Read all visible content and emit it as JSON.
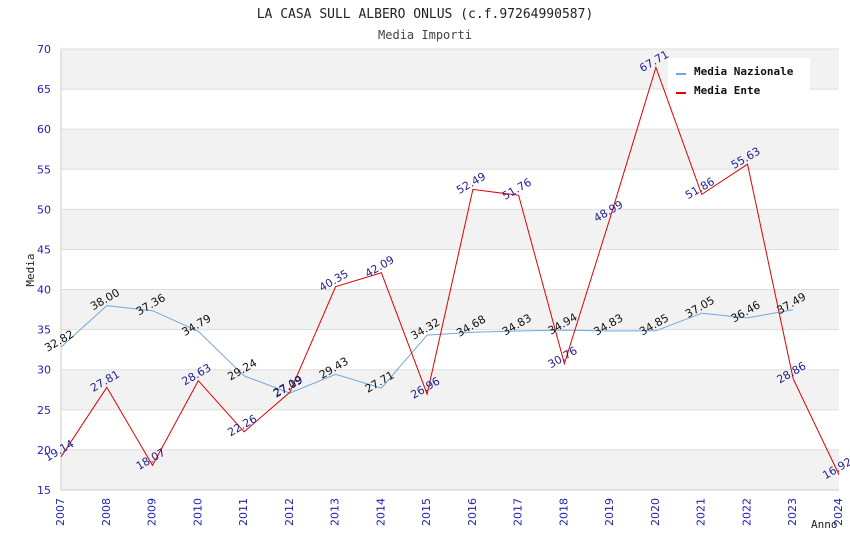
{
  "chart_data": {
    "type": "line",
    "title": "LA CASA SULL ALBERO ONLUS (c.f.97264990587)",
    "subtitle": "Media Importi",
    "xlabel": "Anno",
    "ylabel": "Media",
    "ylim": [
      15,
      70
    ],
    "yticks": [
      "15",
      "20",
      "25",
      "30",
      "35",
      "40",
      "45",
      "50",
      "55",
      "60",
      "65",
      "70"
    ],
    "categories": [
      "2007",
      "2008",
      "2009",
      "2010",
      "2011",
      "2012",
      "2013",
      "2014",
      "2015",
      "2016",
      "2017",
      "2018",
      "2019",
      "2020",
      "2021",
      "2022",
      "2023",
      "2024"
    ],
    "legend_position": "top-right",
    "series": [
      {
        "name": "Media Nazionale",
        "color": "#6fa8dc",
        "values": [
          32.82,
          38.0,
          37.36,
          34.79,
          29.24,
          27.09,
          29.43,
          27.71,
          34.32,
          34.68,
          34.83,
          34.94,
          34.83,
          34.85,
          37.05,
          36.46,
          37.49,
          null
        ],
        "labels": [
          "32.82",
          "38.00",
          "37.36",
          "34.79",
          "29.24",
          "27.09",
          "29.43",
          "27.71",
          "34.32",
          "34.68",
          "34.83",
          "34.94",
          "34.83",
          "34.85",
          "37.05",
          "36.46",
          "37.49",
          null
        ]
      },
      {
        "name": "Media Ente",
        "color": "#e00000",
        "values": [
          19.14,
          27.81,
          18.07,
          28.63,
          22.26,
          27.19,
          40.35,
          42.09,
          26.96,
          52.49,
          51.76,
          30.76,
          48.99,
          67.71,
          51.86,
          55.63,
          28.86,
          16.92
        ],
        "labels": [
          "19.14",
          "27.81",
          "18.07",
          "28.63",
          "22.26",
          "27.19",
          "40.35",
          "42.09",
          "26.96",
          "52.49",
          "51.76",
          "30.76",
          "48.99",
          "67.71",
          "51.86",
          "55.63",
          "28.86",
          "16.92"
        ]
      }
    ]
  }
}
